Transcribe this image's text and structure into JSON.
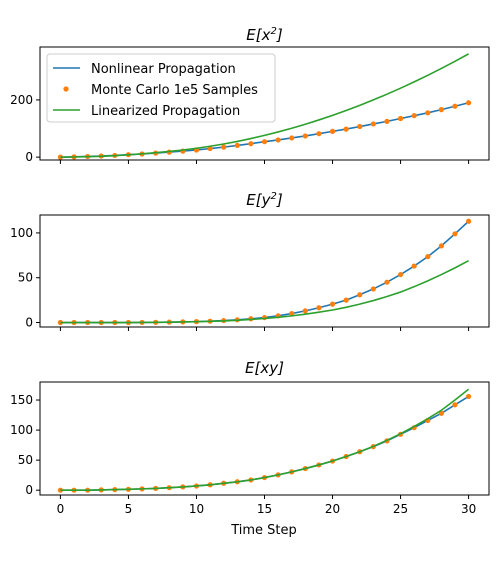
{
  "colors": {
    "nonlinear": "#1f77b4",
    "montecarlo": "#ff7f0e",
    "linearized": "#2ca02c"
  },
  "xlabel": "Time Step",
  "legend": {
    "placement": "upper-left",
    "entries": [
      "Nonlinear Propagation",
      "Monte Carlo 1e5 Samples",
      "Linearized Propagation"
    ]
  },
  "chart_data": [
    {
      "type": "line",
      "title": "E[x²]",
      "title_base": "E[x",
      "title_sup": "2",
      "title_end": "]",
      "xlabel": "",
      "x": [
        0,
        1,
        2,
        3,
        4,
        5,
        6,
        7,
        8,
        9,
        10,
        11,
        12,
        13,
        14,
        15,
        16,
        17,
        18,
        19,
        20,
        21,
        22,
        23,
        24,
        25,
        26,
        27,
        28,
        29,
        30
      ],
      "xlim": [
        -1.5,
        31.5
      ],
      "ylim": [
        -10,
        385
      ],
      "xticks": [
        0,
        5,
        10,
        15,
        20,
        25,
        30
      ],
      "xtick_labels_visible": false,
      "yticks": [
        0,
        200
      ],
      "series": [
        {
          "name": "Nonlinear Propagation",
          "style": "line",
          "values": [
            0,
            1,
            2.5,
            4,
            6,
            8.5,
            11,
            14,
            17.5,
            21,
            25,
            30,
            35,
            41,
            47,
            54,
            60,
            67,
            74,
            82,
            90,
            98,
            107,
            116,
            125,
            135,
            145,
            155,
            166,
            178,
            190
          ]
        },
        {
          "name": "Monte Carlo 1e5 Samples",
          "style": "dots",
          "values": [
            0,
            1,
            2.5,
            4,
            6,
            8.5,
            11,
            14,
            17.5,
            21,
            25,
            30,
            35,
            41,
            47,
            54,
            60,
            67,
            74,
            82,
            90,
            98,
            107,
            116,
            125,
            135,
            145,
            155,
            166,
            178,
            190
          ]
        },
        {
          "name": "Linearized Propagation",
          "style": "line",
          "values": [
            0,
            0.5,
            1.5,
            3,
            5,
            8,
            11.5,
            15.5,
            20,
            25,
            31,
            38,
            46,
            55,
            65,
            76,
            88,
            101,
            115,
            130,
            146,
            163,
            181,
            200,
            220,
            241,
            263,
            286,
            310,
            335,
            361
          ]
        }
      ]
    },
    {
      "type": "line",
      "title": "E[y²]",
      "title_base": "E[y",
      "title_sup": "2",
      "title_end": "]",
      "xlabel": "",
      "x": [
        0,
        1,
        2,
        3,
        4,
        5,
        6,
        7,
        8,
        9,
        10,
        11,
        12,
        13,
        14,
        15,
        16,
        17,
        18,
        19,
        20,
        21,
        22,
        23,
        24,
        25,
        26,
        27,
        28,
        29,
        30
      ],
      "xlim": [
        -1.5,
        31.5
      ],
      "ylim": [
        -5,
        120
      ],
      "xticks": [
        0,
        5,
        10,
        15,
        20,
        25,
        30
      ],
      "xtick_labels_visible": false,
      "yticks": [
        0,
        50,
        100
      ],
      "series": [
        {
          "name": "Nonlinear Propagation",
          "style": "line",
          "values": [
            0,
            0,
            0,
            0,
            0,
            0,
            0.1,
            0.2,
            0.4,
            0.7,
            1,
            1.5,
            2.2,
            3,
            4.2,
            5.5,
            7.5,
            10,
            13,
            16.5,
            20.5,
            25,
            31,
            37.5,
            45,
            53.5,
            63,
            73.5,
            85.5,
            99,
            113
          ]
        },
        {
          "name": "Monte Carlo 1e5 Samples",
          "style": "dots",
          "values": [
            0,
            0,
            0,
            0,
            0,
            0,
            0.1,
            0.2,
            0.4,
            0.7,
            1,
            1.5,
            2.2,
            3,
            4.2,
            5.5,
            7.5,
            10,
            13,
            16.5,
            20.5,
            25,
            31,
            37.5,
            45,
            53.5,
            63,
            73.5,
            85.5,
            99,
            113
          ]
        },
        {
          "name": "Linearized Propagation",
          "style": "line",
          "values": [
            0,
            0,
            0,
            0,
            0,
            0,
            0.1,
            0.2,
            0.4,
            0.6,
            0.9,
            1.3,
            1.8,
            2.5,
            3.4,
            4.5,
            5.8,
            7.4,
            9.3,
            11.5,
            14,
            17,
            20.5,
            24.5,
            29,
            34,
            40,
            46.5,
            53.5,
            61,
            69
          ]
        }
      ]
    },
    {
      "type": "line",
      "title": "E[xy]",
      "title_base": "E[xy]",
      "title_sup": "",
      "title_end": "",
      "xlabel": "Time Step",
      "x": [
        0,
        1,
        2,
        3,
        4,
        5,
        6,
        7,
        8,
        9,
        10,
        11,
        12,
        13,
        14,
        15,
        16,
        17,
        18,
        19,
        20,
        21,
        22,
        23,
        24,
        25,
        26,
        27,
        28,
        29,
        30
      ],
      "xlim": [
        -1.5,
        31.5
      ],
      "ylim": [
        -8,
        180
      ],
      "xticks": [
        0,
        5,
        10,
        15,
        20,
        25,
        30
      ],
      "xtick_labels_visible": true,
      "yticks": [
        0,
        50,
        100,
        150
      ],
      "series": [
        {
          "name": "Nonlinear Propagation",
          "style": "line",
          "values": [
            0,
            0,
            0,
            0.5,
            1,
            1.5,
            2.2,
            3,
            4.2,
            5.5,
            7,
            9,
            11.5,
            14,
            17,
            21,
            25.5,
            30.5,
            36,
            42,
            48.5,
            56,
            64,
            72.5,
            82,
            93,
            104,
            116,
            128,
            142,
            156
          ]
        },
        {
          "name": "Monte Carlo 1e5 Samples",
          "style": "dots",
          "values": [
            0,
            0,
            0,
            0.5,
            1,
            1.5,
            2.2,
            3,
            4.2,
            5.5,
            7,
            9,
            11.5,
            14,
            17,
            21,
            25.5,
            30.5,
            36,
            42,
            48.5,
            56,
            64,
            72.5,
            82,
            93,
            104,
            116,
            128,
            142,
            156
          ]
        },
        {
          "name": "Linearized Propagation",
          "style": "line",
          "values": [
            0,
            0,
            0,
            0.5,
            1,
            1.5,
            2.2,
            3,
            4.2,
            5.5,
            7,
            9,
            11.5,
            14,
            17,
            21,
            25.5,
            30.5,
            36,
            42,
            48.5,
            56,
            64,
            73,
            83,
            94,
            106,
            119,
            133,
            150,
            168
          ]
        }
      ]
    }
  ]
}
